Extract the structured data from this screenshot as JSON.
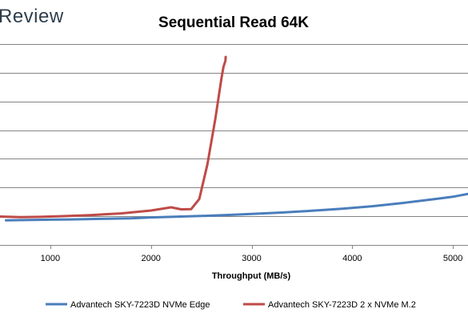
{
  "watermark": "Review",
  "chart_data": {
    "type": "line",
    "title": "Sequential Read 64K",
    "xlabel": "Throughput (MB/s)",
    "ylabel": "",
    "xlim": [
      500,
      5150
    ],
    "ylim": [
      0,
      7
    ],
    "x_ticks": [
      1000,
      2000,
      3000,
      4000,
      5000
    ],
    "x_tick_labels": [
      "1000",
      "2000",
      "3000",
      "4000",
      "5000"
    ],
    "grid": true,
    "legend_position": "bottom",
    "series": [
      {
        "name": "Advantech SKY-7223D NVMe Edge",
        "color": "#4a7ebb",
        "points": [
          [
            560,
            0.86
          ],
          [
            800,
            0.87
          ],
          [
            1000,
            0.88
          ],
          [
            1200,
            0.89
          ],
          [
            1500,
            0.91
          ],
          [
            1800,
            0.93
          ],
          [
            2000,
            0.96
          ],
          [
            2200,
            0.98
          ],
          [
            2500,
            1.01
          ],
          [
            2800,
            1.05
          ],
          [
            3000,
            1.08
          ],
          [
            3300,
            1.13
          ],
          [
            3600,
            1.19
          ],
          [
            3900,
            1.26
          ],
          [
            4200,
            1.35
          ],
          [
            4500,
            1.46
          ],
          [
            4800,
            1.59
          ],
          [
            5000,
            1.68
          ],
          [
            5150,
            1.78
          ]
        ]
      },
      {
        "name": "Advantech SKY-7223D 2 x NVMe M.2",
        "color": "#be4b48",
        "points": [
          [
            500,
            0.99
          ],
          [
            700,
            0.97
          ],
          [
            900,
            0.98
          ],
          [
            1100,
            1.0
          ],
          [
            1400,
            1.04
          ],
          [
            1700,
            1.1
          ],
          [
            2000,
            1.2
          ],
          [
            2200,
            1.31
          ],
          [
            2300,
            1.24
          ],
          [
            2400,
            1.25
          ],
          [
            2480,
            1.6
          ],
          [
            2560,
            2.8
          ],
          [
            2640,
            4.4
          ],
          [
            2700,
            5.8
          ],
          [
            2720,
            6.2
          ],
          [
            2740,
            6.42
          ],
          [
            2742,
            6.55
          ]
        ]
      }
    ]
  }
}
